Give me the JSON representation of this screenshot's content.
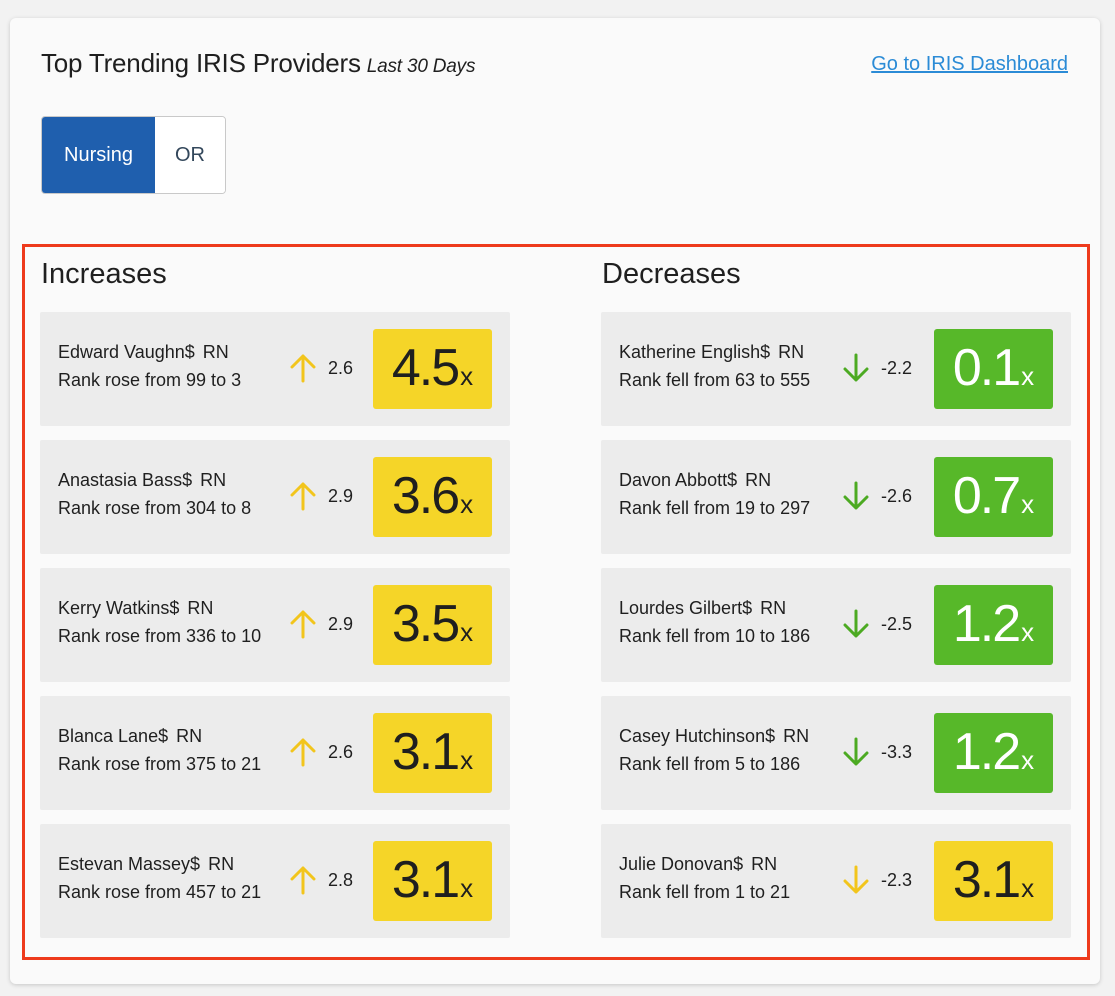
{
  "header": {
    "title": "Top Trending IRIS Providers",
    "subtitle": "Last 30 Days",
    "dashboard_link": "Go to IRIS Dashboard"
  },
  "toggle": {
    "options": [
      "Nursing",
      "OR"
    ],
    "selected": "Nursing"
  },
  "colors": {
    "yellow_badge": "#f5d528",
    "green_badge": "#57b829",
    "yellow_arrow": "#f2c51c",
    "green_arrow": "#4caa22",
    "active_toggle": "#1f5fae",
    "link": "#2b8bd6",
    "highlight_border": "#ee3a1c"
  },
  "increases": {
    "title": "Increases",
    "rows": [
      {
        "name": "Edward Vaughn$",
        "role": "RN",
        "rank": "Rank rose from 99 to 3",
        "arrow": "up-arrow-icon",
        "arrow_color": "yellow",
        "delta": "2.6",
        "multiplier": "4.5",
        "suffix": "x",
        "badge_color": "yellow"
      },
      {
        "name": "Anastasia Bass$",
        "role": "RN",
        "rank": "Rank rose from 304 to 8",
        "arrow": "up-arrow-icon",
        "arrow_color": "yellow",
        "delta": "2.9",
        "multiplier": "3.6",
        "suffix": "x",
        "badge_color": "yellow"
      },
      {
        "name": "Kerry Watkins$",
        "role": "RN",
        "rank": "Rank rose from 336 to 10",
        "arrow": "up-arrow-icon",
        "arrow_color": "yellow",
        "delta": "2.9",
        "multiplier": "3.5",
        "suffix": "x",
        "badge_color": "yellow"
      },
      {
        "name": "Blanca Lane$",
        "role": "RN",
        "rank": "Rank rose from 375 to 21",
        "arrow": "up-arrow-icon",
        "arrow_color": "yellow",
        "delta": "2.6",
        "multiplier": "3.1",
        "suffix": "x",
        "badge_color": "yellow"
      },
      {
        "name": "Estevan Massey$",
        "role": "RN",
        "rank": "Rank rose from 457 to 21",
        "arrow": "up-arrow-icon",
        "arrow_color": "yellow",
        "delta": "2.8",
        "multiplier": "3.1",
        "suffix": "x",
        "badge_color": "yellow"
      }
    ]
  },
  "decreases": {
    "title": "Decreases",
    "rows": [
      {
        "name": "Katherine English$",
        "role": "RN",
        "rank": "Rank fell from 63 to 555",
        "arrow": "down-arrow-icon",
        "arrow_color": "green",
        "delta": "-2.2",
        "multiplier": "0.1",
        "suffix": "x",
        "badge_color": "green"
      },
      {
        "name": "Davon Abbott$",
        "role": "RN",
        "rank": "Rank fell from 19 to 297",
        "arrow": "down-arrow-icon",
        "arrow_color": "green",
        "delta": "-2.6",
        "multiplier": "0.7",
        "suffix": "x",
        "badge_color": "green"
      },
      {
        "name": "Lourdes Gilbert$",
        "role": "RN",
        "rank": "Rank fell from 10 to 186",
        "arrow": "down-arrow-icon",
        "arrow_color": "green",
        "delta": "-2.5",
        "multiplier": "1.2",
        "suffix": "x",
        "badge_color": "green"
      },
      {
        "name": "Casey Hutchinson$",
        "role": "RN",
        "rank": "Rank fell from 5 to 186",
        "arrow": "down-arrow-icon",
        "arrow_color": "green",
        "delta": "-3.3",
        "multiplier": "1.2",
        "suffix": "x",
        "badge_color": "green"
      },
      {
        "name": "Julie Donovan$",
        "role": "RN",
        "rank": "Rank fell from 1 to 21",
        "arrow": "down-arrow-icon",
        "arrow_color": "yellow",
        "delta": "-2.3",
        "multiplier": "3.1",
        "suffix": "x",
        "badge_color": "yellow"
      }
    ]
  }
}
